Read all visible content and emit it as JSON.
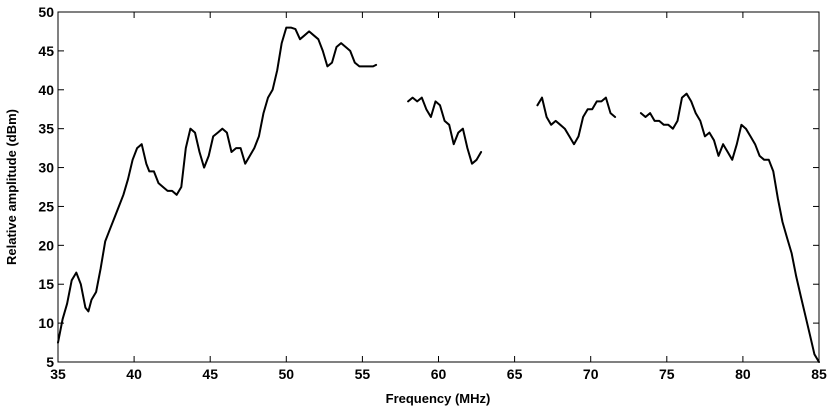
{
  "chart_data": {
    "type": "line",
    "title": "",
    "xlabel": "Frequency (MHz)",
    "ylabel": "Relative amplitude (dBm)",
    "xlim": [
      35,
      85
    ],
    "ylim": [
      5,
      50
    ],
    "xticks": [
      35,
      40,
      45,
      50,
      55,
      60,
      65,
      70,
      75,
      80,
      85
    ],
    "yticks": [
      5,
      10,
      15,
      20,
      25,
      30,
      35,
      40,
      45,
      50
    ],
    "grid": false,
    "legend": "none",
    "line_color": "#000000",
    "series": [
      {
        "x": [
          35.0,
          35.3,
          35.6,
          35.9,
          36.2,
          36.5,
          36.8,
          37.0,
          37.2,
          37.5,
          37.8,
          38.1,
          38.4,
          38.7,
          39.0,
          39.3,
          39.6,
          39.9,
          40.2,
          40.5,
          40.8,
          41.0,
          41.3,
          41.6,
          41.9,
          42.2,
          42.5,
          42.8,
          43.1,
          43.4,
          43.7,
          44.0,
          44.3,
          44.6,
          44.9,
          45.2,
          45.5,
          45.8,
          46.1,
          46.4,
          46.7,
          47.0,
          47.3,
          47.6,
          47.9,
          48.2,
          48.5,
          48.8,
          49.1,
          49.4,
          49.7,
          50.0,
          50.3,
          50.6,
          50.9,
          51.2,
          51.5,
          51.8,
          52.1,
          52.4,
          52.7,
          53.0,
          53.3,
          53.6,
          53.9,
          54.2,
          54.5,
          54.8,
          55.1,
          55.4,
          55.7,
          55.9
        ],
        "y": [
          7.5,
          10.5,
          12.5,
          15.5,
          16.5,
          15.0,
          12.0,
          11.5,
          13.0,
          14.0,
          17.0,
          20.5,
          22.0,
          23.5,
          25.0,
          26.5,
          28.5,
          31.0,
          32.5,
          33.0,
          30.5,
          29.5,
          29.5,
          28.0,
          27.5,
          27.0,
          27.0,
          26.5,
          27.5,
          32.5,
          35.0,
          34.5,
          32.0,
          30.0,
          31.5,
          34.0,
          34.5,
          35.0,
          34.5,
          32.0,
          32.5,
          32.5,
          30.5,
          31.5,
          32.5,
          34.0,
          37.0,
          39.0,
          40.0,
          42.5,
          46.0,
          48.0,
          48.0,
          47.8,
          46.5,
          47.0,
          47.5,
          47.0,
          46.5,
          45.0,
          43.0,
          43.5,
          45.5,
          46.0,
          45.5,
          45.0,
          43.5,
          43.0,
          43.0,
          43.0,
          43.0,
          43.2
        ],
        "x_extra": []
      },
      {
        "x": [
          58.0,
          58.3,
          58.6,
          58.9,
          59.2,
          59.5,
          59.8,
          60.1,
          60.4,
          60.7,
          61.0,
          61.3,
          61.6,
          61.9,
          62.2,
          62.5,
          62.8
        ],
        "y": [
          38.5,
          39.0,
          38.5,
          39.0,
          37.5,
          36.5,
          38.5,
          38.0,
          36.0,
          35.5,
          33.0,
          34.5,
          35.0,
          32.5,
          30.5,
          31.0,
          32.0
        ]
      },
      {
        "x": [
          66.5,
          66.8,
          67.1,
          67.4,
          67.7,
          68.0,
          68.3,
          68.6,
          68.9,
          69.2,
          69.5,
          69.8,
          70.1,
          70.4,
          70.7,
          71.0,
          71.3,
          71.6
        ],
        "y": [
          38.0,
          39.0,
          36.5,
          35.5,
          36.0,
          35.5,
          35.0,
          34.0,
          33.0,
          34.0,
          36.5,
          37.5,
          37.5,
          38.5,
          38.5,
          39.0,
          37.0,
          36.5
        ]
      },
      {
        "x": [
          73.3,
          73.6,
          73.9,
          74.2,
          74.5,
          74.8,
          75.1,
          75.4,
          75.7,
          76.0,
          76.3,
          76.6,
          76.9,
          77.2,
          77.5,
          77.8,
          78.1,
          78.4,
          78.7,
          79.0,
          79.3,
          79.6,
          79.9,
          80.2,
          80.5,
          80.8,
          81.1,
          81.4,
          81.7,
          82.0,
          82.3,
          82.6,
          82.9,
          83.2,
          83.5,
          83.8,
          84.1,
          84.4,
          84.7,
          85.0
        ],
        "y": [
          37.0,
          36.5,
          37.0,
          36.0,
          36.0,
          35.5,
          35.5,
          35.0,
          36.0,
          39.0,
          39.5,
          38.5,
          37.0,
          36.0,
          34.0,
          34.5,
          33.5,
          31.5,
          33.0,
          32.0,
          31.0,
          33.0,
          35.5,
          35.0,
          34.0,
          33.0,
          31.5,
          31.0,
          31.0,
          29.5,
          26.0,
          23.0,
          21.0,
          19.0,
          16.0,
          13.5,
          11.0,
          8.5,
          6.0,
          5.0
        ]
      }
    ]
  }
}
